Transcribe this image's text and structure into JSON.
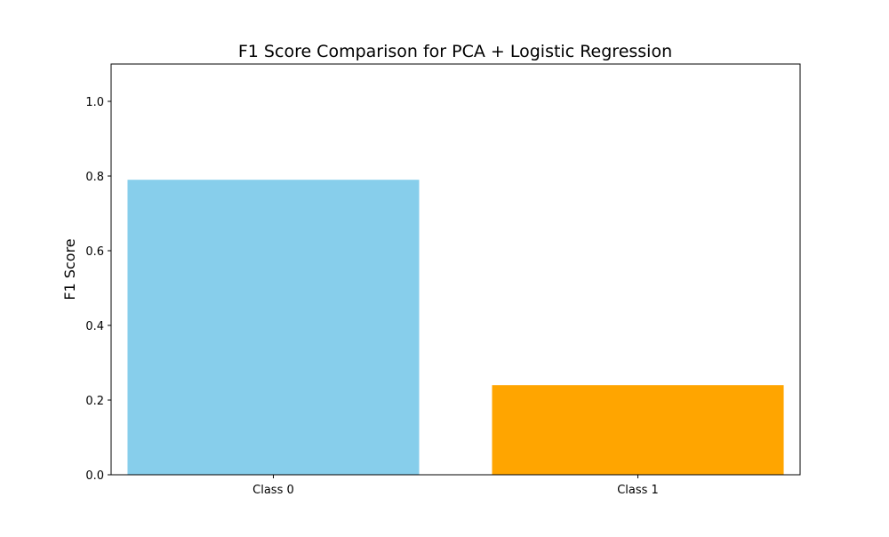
{
  "chart_data": {
    "type": "bar",
    "title": "F1 Score Comparison for PCA + Logistic Regression",
    "xlabel": "",
    "ylabel": "F1 Score",
    "categories": [
      "Class 0",
      "Class 1"
    ],
    "values": [
      0.79,
      0.24
    ],
    "colors": [
      "#87CEEB",
      "#FFA500"
    ],
    "ylim": [
      0,
      1.1
    ],
    "yticks": [
      0.0,
      0.2,
      0.4,
      0.6,
      0.8,
      1.0
    ],
    "ytick_labels": [
      "0.0",
      "0.2",
      "0.4",
      "0.6",
      "0.8",
      "1.0"
    ],
    "grid": false,
    "legend": false
  }
}
